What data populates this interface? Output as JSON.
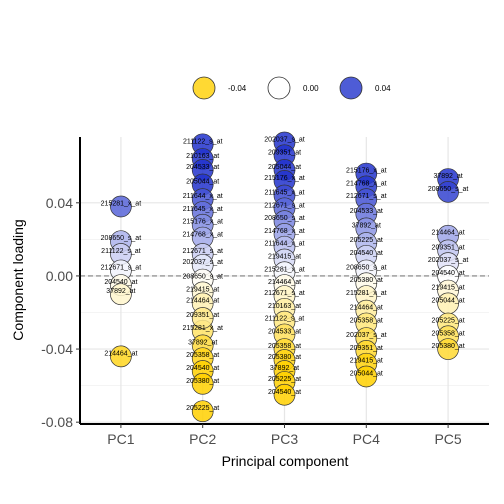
{
  "chart_data": {
    "type": "scatter",
    "title": "",
    "xlabel": "Principal component",
    "ylabel": "Component loading",
    "categories": [
      "PC1",
      "PC2",
      "PC3",
      "PC4",
      "PC5"
    ],
    "ylim": [
      -0.081,
      0.076
    ],
    "yticks": [
      -0.08,
      -0.04,
      0.0,
      0.04
    ],
    "ytick_labels": [
      "-0.08",
      "-0.04",
      "0.00",
      "0.04"
    ],
    "reference_line": 0,
    "grid": true,
    "legend": {
      "position": "top",
      "items": [
        {
          "label": "-0.04",
          "value": -0.04
        },
        {
          "label": "0.00",
          "value": 0.0
        },
        {
          "label": "0.04",
          "value": 0.04
        }
      ]
    },
    "color_scale": {
      "low": "#ffd000",
      "mid": "#ffffff",
      "high": "#2233cc"
    },
    "points": [
      {
        "pc": "PC1",
        "label": "215281_x_at",
        "value": 0.038
      },
      {
        "pc": "PC1",
        "label": "208650_s_at",
        "value": 0.019
      },
      {
        "pc": "PC1",
        "label": "211122_s_at",
        "value": 0.012
      },
      {
        "pc": "PC1",
        "label": "212671_s_at",
        "value": 0.003
      },
      {
        "pc": "PC1",
        "label": "204540_at",
        "value": -0.005
      },
      {
        "pc": "PC1",
        "label": "37892_at",
        "value": -0.01
      },
      {
        "pc": "PC1",
        "label": "214464_at",
        "value": -0.044
      },
      {
        "pc": "PC2",
        "label": "211122_s_at",
        "value": 0.072
      },
      {
        "pc": "PC2",
        "label": "210163_at",
        "value": 0.064
      },
      {
        "pc": "PC2",
        "label": "204533_at",
        "value": 0.058
      },
      {
        "pc": "PC2",
        "label": "205044_at",
        "value": 0.05
      },
      {
        "pc": "PC2",
        "label": "211644_x_at",
        "value": 0.042
      },
      {
        "pc": "PC2",
        "label": "211645_x_at",
        "value": 0.035
      },
      {
        "pc": "PC2",
        "label": "215176_x_at",
        "value": 0.028
      },
      {
        "pc": "PC2",
        "label": "214768_x_at",
        "value": 0.021
      },
      {
        "pc": "PC2",
        "label": "212671_s_at",
        "value": 0.012
      },
      {
        "pc": "PC2",
        "label": "202037_s_at",
        "value": 0.006
      },
      {
        "pc": "PC2",
        "label": "208650_s_at",
        "value": -0.002
      },
      {
        "pc": "PC2",
        "label": "219415_at",
        "value": -0.009
      },
      {
        "pc": "PC2",
        "label": "214464_at",
        "value": -0.015
      },
      {
        "pc": "PC2",
        "label": "215281_x_at",
        "value": -0.03
      },
      {
        "pc": "PC2",
        "label": "37892_at",
        "value": -0.038
      },
      {
        "pc": "PC2",
        "label": "205358_at",
        "value": -0.045
      },
      {
        "pc": "PC2",
        "label": "209351_at",
        "value": -0.023
      },
      {
        "pc": "PC2",
        "label": "204540_at",
        "value": -0.052
      },
      {
        "pc": "PC2",
        "label": "205380_at",
        "value": -0.059
      },
      {
        "pc": "PC2",
        "label": "205225_at",
        "value": -0.074
      },
      {
        "pc": "PC3",
        "label": "202037_s_at",
        "value": 0.073
      },
      {
        "pc": "PC3",
        "label": "209351_at",
        "value": 0.066
      },
      {
        "pc": "PC3",
        "label": "205044_at",
        "value": 0.058
      },
      {
        "pc": "PC3",
        "label": "215176_x_at",
        "value": 0.052
      },
      {
        "pc": "PC3",
        "label": "211645_x_at",
        "value": 0.044
      },
      {
        "pc": "PC3",
        "label": "212671_s_at",
        "value": 0.037
      },
      {
        "pc": "PC3",
        "label": "208650_s_at",
        "value": 0.03
      },
      {
        "pc": "PC3",
        "label": "214768_x_at",
        "value": 0.023
      },
      {
        "pc": "PC3",
        "label": "211644_x_at",
        "value": 0.016
      },
      {
        "pc": "PC3",
        "label": "219415_at",
        "value": 0.009
      },
      {
        "pc": "PC3",
        "label": "215281_x_at",
        "value": 0.002
      },
      {
        "pc": "PC3",
        "label": "214464_at",
        "value": -0.005
      },
      {
        "pc": "PC3",
        "label": "212671_s_at",
        "value": -0.011
      },
      {
        "pc": "PC3",
        "label": "210163_at",
        "value": -0.018
      },
      {
        "pc": "PC3",
        "label": "211122_s_at",
        "value": -0.025
      },
      {
        "pc": "PC3",
        "label": "204533_at",
        "value": -0.032
      },
      {
        "pc": "PC3",
        "label": "205358_at",
        "value": -0.04
      },
      {
        "pc": "PC3",
        "label": "205380_at",
        "value": -0.046
      },
      {
        "pc": "PC3",
        "label": "37892_at",
        "value": -0.052
      },
      {
        "pc": "PC3",
        "label": "205225_at",
        "value": -0.058
      },
      {
        "pc": "PC3",
        "label": "204540_at",
        "value": -0.065
      },
      {
        "pc": "PC4",
        "label": "215176_x_at",
        "value": 0.056
      },
      {
        "pc": "PC4",
        "label": "214768_x_at",
        "value": 0.049
      },
      {
        "pc": "PC4",
        "label": "212671_s_at",
        "value": 0.042
      },
      {
        "pc": "PC4",
        "label": "204533_at",
        "value": 0.034
      },
      {
        "pc": "PC4",
        "label": "37892_at",
        "value": 0.026
      },
      {
        "pc": "PC4",
        "label": "205225_at",
        "value": 0.018
      },
      {
        "pc": "PC4",
        "label": "204540_at",
        "value": 0.011
      },
      {
        "pc": "PC4",
        "label": "208650_s_at",
        "value": 0.003
      },
      {
        "pc": "PC4",
        "label": "205380_at",
        "value": -0.004
      },
      {
        "pc": "PC4",
        "label": "215281_x_at",
        "value": -0.011
      },
      {
        "pc": "PC4",
        "label": "214464_at",
        "value": -0.019
      },
      {
        "pc": "PC4",
        "label": "205358_at",
        "value": -0.026
      },
      {
        "pc": "PC4",
        "label": "202037_s_at",
        "value": -0.034
      },
      {
        "pc": "PC4",
        "label": "209351_at",
        "value": -0.041
      },
      {
        "pc": "PC4",
        "label": "219415_at",
        "value": -0.048
      },
      {
        "pc": "PC4",
        "label": "205044_at",
        "value": -0.055
      },
      {
        "pc": "PC5",
        "label": "37892_at",
        "value": 0.053
      },
      {
        "pc": "PC5",
        "label": "208650_s_at",
        "value": 0.046
      },
      {
        "pc": "PC5",
        "label": "214464_at",
        "value": 0.022
      },
      {
        "pc": "PC5",
        "label": "209351_at",
        "value": 0.014
      },
      {
        "pc": "PC5",
        "label": "202037_s_at",
        "value": 0.007
      },
      {
        "pc": "PC5",
        "label": "204540_at",
        "value": 0.0
      },
      {
        "pc": "PC5",
        "label": "219415_at",
        "value": -0.008
      },
      {
        "pc": "PC5",
        "label": "205044_at",
        "value": -0.015
      },
      {
        "pc": "PC5",
        "label": "205225_at",
        "value": -0.026
      },
      {
        "pc": "PC5",
        "label": "205358_at",
        "value": -0.033
      },
      {
        "pc": "PC5",
        "label": "205380_at",
        "value": -0.04
      }
    ]
  }
}
